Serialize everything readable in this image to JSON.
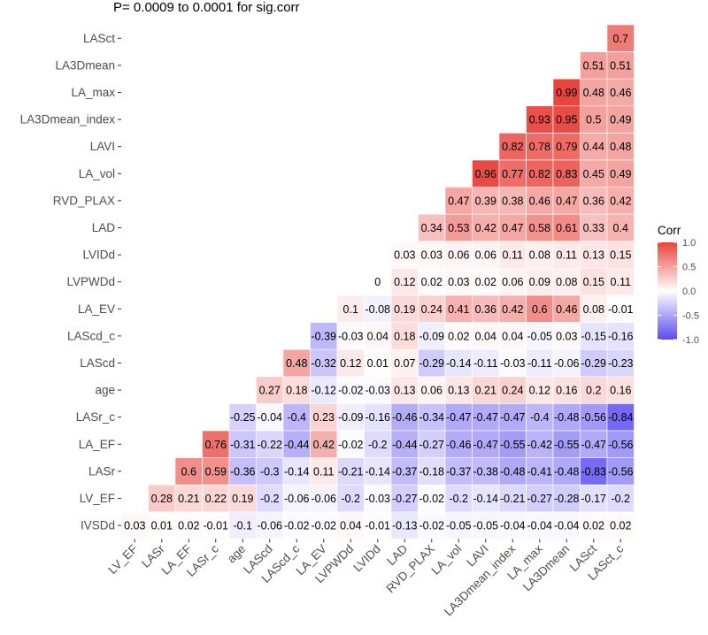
{
  "title": "P= 0.0009 to 0.0001 for sig.corr",
  "chart_data": {
    "type": "heatmap",
    "x_labels": [
      "LV_EF",
      "LASr",
      "LA_EF",
      "LASr_c",
      "age",
      "LAScd",
      "LAScd_c",
      "LA_EV",
      "LVPWDd",
      "LVIDd",
      "LAD",
      "RVD_PLAX",
      "LA_vol",
      "LAVI",
      "LA3Dmean_index",
      "LA_max",
      "LA3Dmean",
      "LASct",
      "LASct_c"
    ],
    "y_labels": [
      "LASct",
      "LA3Dmean",
      "LA_max",
      "LA3Dmean_index",
      "LAVI",
      "LA_vol",
      "RVD_PLAX",
      "LAD",
      "LVIDd",
      "LVPWDd",
      "LA_EV",
      "LAScd_c",
      "LAScd",
      "age",
      "LASr_c",
      "LA_EF",
      "LASr",
      "LV_EF",
      "IVSDd"
    ],
    "values": [
      [
        null,
        null,
        null,
        null,
        null,
        null,
        null,
        null,
        null,
        null,
        null,
        null,
        null,
        null,
        null,
        null,
        null,
        null,
        "0.7"
      ],
      [
        null,
        null,
        null,
        null,
        null,
        null,
        null,
        null,
        null,
        null,
        null,
        null,
        null,
        null,
        null,
        null,
        null,
        "0.51",
        "0.51"
      ],
      [
        null,
        null,
        null,
        null,
        null,
        null,
        null,
        null,
        null,
        null,
        null,
        null,
        null,
        null,
        null,
        null,
        "0.99",
        "0.48",
        "0.46"
      ],
      [
        null,
        null,
        null,
        null,
        null,
        null,
        null,
        null,
        null,
        null,
        null,
        null,
        null,
        null,
        null,
        "0.93",
        "0.95",
        "0.5",
        "0.49"
      ],
      [
        null,
        null,
        null,
        null,
        null,
        null,
        null,
        null,
        null,
        null,
        null,
        null,
        null,
        null,
        "0.82",
        "0.78",
        "0.79",
        "0.44",
        "0.48"
      ],
      [
        null,
        null,
        null,
        null,
        null,
        null,
        null,
        null,
        null,
        null,
        null,
        null,
        null,
        "0.96",
        "0.77",
        "0.82",
        "0.83",
        "0.45",
        "0.49"
      ],
      [
        null,
        null,
        null,
        null,
        null,
        null,
        null,
        null,
        null,
        null,
        null,
        null,
        "0.47",
        "0.39",
        "0.38",
        "0.46",
        "0.47",
        "0.36",
        "0.42"
      ],
      [
        null,
        null,
        null,
        null,
        null,
        null,
        null,
        null,
        null,
        null,
        null,
        "0.34",
        "0.53",
        "0.42",
        "0.47",
        "0.58",
        "0.61",
        "0.33",
        "0.4"
      ],
      [
        null,
        null,
        null,
        null,
        null,
        null,
        null,
        null,
        null,
        null,
        "0.03",
        "0.03",
        "0.06",
        "0.06",
        "0.11",
        "0.08",
        "0.11",
        "0.13",
        "0.15"
      ],
      [
        null,
        null,
        null,
        null,
        null,
        null,
        null,
        null,
        null,
        "0",
        "0.12",
        "0.02",
        "0.03",
        "0.02",
        "0.06",
        "0.09",
        "0.08",
        "0.15",
        "0.11"
      ],
      [
        null,
        null,
        null,
        null,
        null,
        null,
        null,
        null,
        "0.1",
        "-0.08",
        "0.19",
        "0.24",
        "0.41",
        "0.36",
        "0.42",
        "0.6",
        "0.46",
        "0.08",
        "-0.01"
      ],
      [
        null,
        null,
        null,
        null,
        null,
        null,
        null,
        "-0.39",
        "-0.03",
        "0.04",
        "0.18",
        "-0.09",
        "0.02",
        "0.04",
        "0.04",
        "-0.05",
        "0.03",
        "-0.15",
        "-0.16"
      ],
      [
        null,
        null,
        null,
        null,
        null,
        null,
        "0.48",
        "-0.32",
        "0.12",
        "0.01",
        "0.07",
        "-0.29",
        "-0.14",
        "-0.11",
        "-0.03",
        "-0.11",
        "-0.06",
        "-0.29",
        "-0.23"
      ],
      [
        null,
        null,
        null,
        null,
        null,
        "0.27",
        "0.18",
        "-0.12",
        "-0.02",
        "-0.03",
        "0.13",
        "0.06",
        "0.13",
        "0.21",
        "0.24",
        "0.12",
        "0.16",
        "0.2",
        "0.16"
      ],
      [
        null,
        null,
        null,
        null,
        "-0.25",
        "-0.04",
        "-0.4",
        "0.23",
        "-0.09",
        "-0.16",
        "-0.46",
        "-0.34",
        "-0.47",
        "-0.47",
        "-0.47",
        "-0.4",
        "-0.48",
        "-0.56",
        "-0.84"
      ],
      [
        null,
        null,
        null,
        "0.76",
        "-0.31",
        "-0.22",
        "-0.44",
        "0.42",
        "-0.02",
        "-0.2",
        "-0.44",
        "-0.27",
        "-0.46",
        "-0.47",
        "-0.55",
        "-0.42",
        "-0.55",
        "-0.47",
        "-0.56"
      ],
      [
        null,
        null,
        "0.6",
        "0.59",
        "-0.36",
        "-0.3",
        "-0.14",
        "0.11",
        "-0.21",
        "-0.14",
        "-0.37",
        "-0.18",
        "-0.37",
        "-0.38",
        "-0.48",
        "-0.41",
        "-0.48",
        "-0.83",
        "-0.56"
      ],
      [
        null,
        "0.28",
        "0.21",
        "0.22",
        "0.19",
        "-0.2",
        "-0.06",
        "-0.06",
        "-0.2",
        "-0.03",
        "-0.27",
        "-0.02",
        "-0.2",
        "-0.14",
        "-0.21",
        "-0.27",
        "-0.28",
        "-0.17",
        "-0.2"
      ],
      [
        "0.03",
        "0.01",
        "0.02",
        "-0.01",
        "-0.1",
        "-0.06",
        "-0.02",
        "-0.02",
        "0.04",
        "-0.01",
        "-0.13",
        "-0.02",
        "-0.05",
        "-0.05",
        "-0.04",
        "-0.04",
        "-0.04",
        "0.02",
        "0.02"
      ]
    ],
    "legend": {
      "title": "Corr",
      "ticks": [
        "1.0",
        "0.5",
        "0.0",
        "-0.5",
        "-1.0"
      ],
      "tick_values": [
        1.0,
        0.5,
        0.0,
        -0.5,
        -1.0
      ],
      "high_color": "#e8433c",
      "mid_color": "#ffffff",
      "low_color": "#5b4bf0",
      "range": [
        -1,
        1
      ]
    },
    "grid": false
  }
}
